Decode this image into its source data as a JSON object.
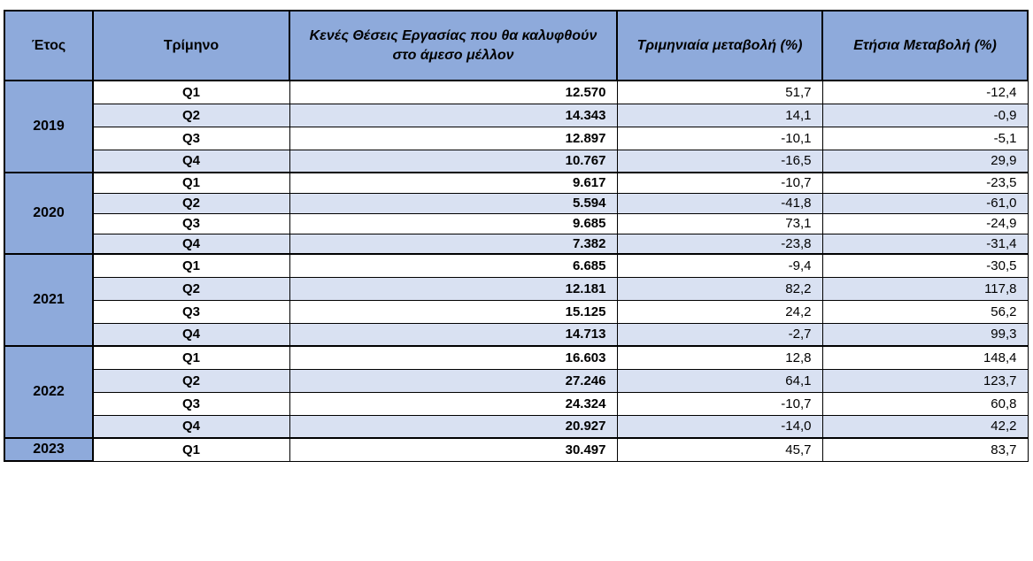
{
  "headers": {
    "year": "Έτος",
    "quarter": "Τρίμηνο",
    "vacancies": "Κενές Θέσεις Εργασίας που θα καλυφθούν στο άμεσο μέλλον",
    "quarterly_change": "Τριμηνιαία μεταβολή (%)",
    "annual_change": "Ετήσια Μεταβολή (%)"
  },
  "groups": [
    {
      "year": "2019",
      "rows": [
        {
          "quarter": "Q1",
          "vacancies": "12.570",
          "quarterly": "51,7",
          "annual": "-12,4"
        },
        {
          "quarter": "Q2",
          "vacancies": "14.343",
          "quarterly": "14,1",
          "annual": "-0,9"
        },
        {
          "quarter": "Q3",
          "vacancies": "12.897",
          "quarterly": "-10,1",
          "annual": "-5,1"
        },
        {
          "quarter": "Q4",
          "vacancies": "10.767",
          "quarterly": "-16,5",
          "annual": "29,9"
        }
      ]
    },
    {
      "year": "2020",
      "rows": [
        {
          "quarter": "Q1",
          "vacancies": "9.617",
          "quarterly": "-10,7",
          "annual": "-23,5"
        },
        {
          "quarter": "Q2",
          "vacancies": "5.594",
          "quarterly": "-41,8",
          "annual": "-61,0"
        },
        {
          "quarter": "Q3",
          "vacancies": "9.685",
          "quarterly": "73,1",
          "annual": "-24,9"
        },
        {
          "quarter": "Q4",
          "vacancies": "7.382",
          "quarterly": "-23,8",
          "annual": "-31,4"
        }
      ]
    },
    {
      "year": "2021",
      "rows": [
        {
          "quarter": "Q1",
          "vacancies": "6.685",
          "quarterly": "-9,4",
          "annual": "-30,5"
        },
        {
          "quarter": "Q2",
          "vacancies": "12.181",
          "quarterly": "82,2",
          "annual": "117,8"
        },
        {
          "quarter": "Q3",
          "vacancies": "15.125",
          "quarterly": "24,2",
          "annual": "56,2"
        },
        {
          "quarter": "Q4",
          "vacancies": "14.713",
          "quarterly": "-2,7",
          "annual": "99,3"
        }
      ]
    },
    {
      "year": "2022",
      "rows": [
        {
          "quarter": "Q1",
          "vacancies": "16.603",
          "quarterly": "12,8",
          "annual": "148,4"
        },
        {
          "quarter": "Q2",
          "vacancies": "27.246",
          "quarterly": "64,1",
          "annual": "123,7"
        },
        {
          "quarter": "Q3",
          "vacancies": "24.324",
          "quarterly": "-10,7",
          "annual": "60,8"
        },
        {
          "quarter": "Q4",
          "vacancies": "20.927",
          "quarterly": "-14,0",
          "annual": "42,2"
        }
      ]
    },
    {
      "year": "2023",
      "rows": [
        {
          "quarter": "Q1",
          "vacancies": "30.497",
          "quarterly": "45,7",
          "annual": "83,7"
        }
      ]
    }
  ]
}
